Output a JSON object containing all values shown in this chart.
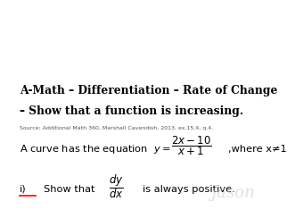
{
  "title_line1": "A-Math – Differentiation – Rate of Change",
  "title_line2": "– Show that a function is increasing.",
  "source": "Source: Additional Math 360, Marshall Cavendish, 2013, ex.15.4, q.4.",
  "curve_prefix": "A curve has the equation  ",
  "y_eq": "$y=$",
  "fraction": "$\\dfrac{2x-10}{x+1}$",
  "where_text": ",where x≠1",
  "part_i_label": "i)",
  "part_i_text1": "Show that",
  "part_i_frac": "$\\dfrac{dy}{dx}$",
  "part_i_text2": "is always positive.",
  "watermark": "Jason",
  "bg_color": "#ffffff",
  "text_color": "#000000",
  "source_color": "#555555",
  "watermark_color": "#cccccc"
}
